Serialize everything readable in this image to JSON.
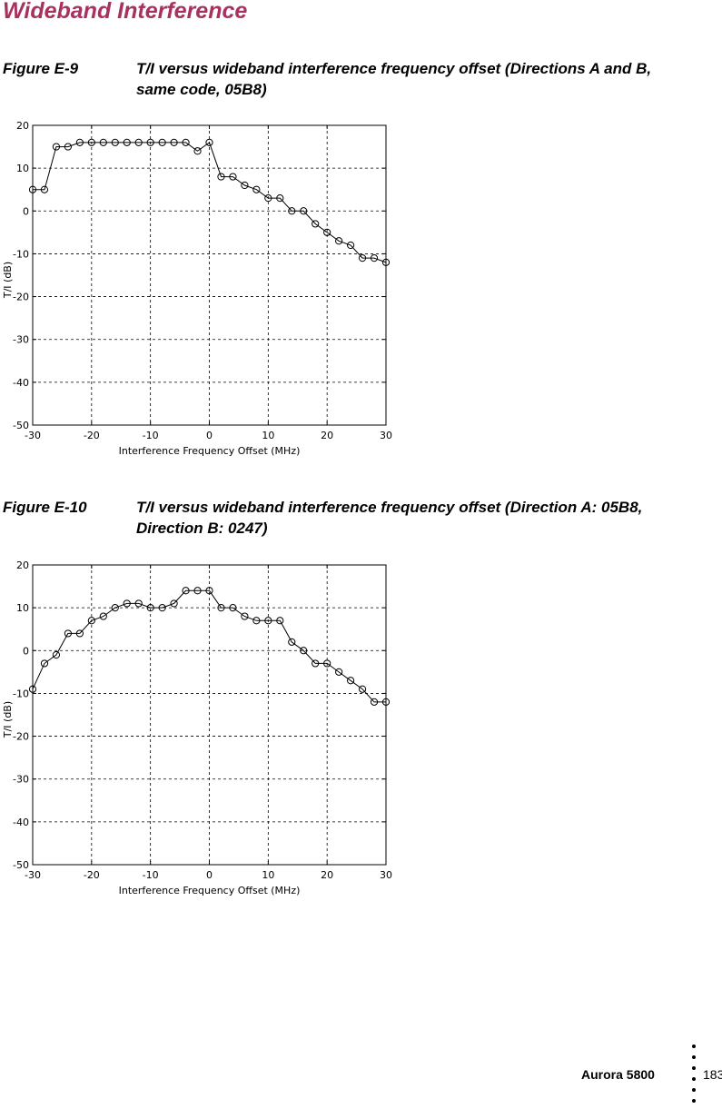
{
  "section_title": "Wideband Interference",
  "figures": [
    {
      "label": "Figure E-9",
      "caption": "T/I versus wideband interference frequency offset (Directions A and B, same code, 05B8)"
    },
    {
      "label": "Figure E-10",
      "caption": "T/I versus wideband interference frequency offset (Direction A: 05B8, Direction B: 0247)"
    }
  ],
  "footer": {
    "product": "Aurora 5800",
    "page": "183"
  },
  "chart_data": [
    {
      "type": "line",
      "marker": "circle",
      "xlabel": "Interference Frequency Offset (MHz)",
      "ylabel": "T/I  (dB)",
      "xlim": [
        -30,
        30
      ],
      "ylim": [
        -50,
        20
      ],
      "xticks": [
        -30,
        -20,
        -10,
        0,
        10,
        20,
        30
      ],
      "yticks": [
        20,
        10,
        0,
        -10,
        -20,
        -30,
        -40,
        -50
      ],
      "grid": true,
      "x": [
        -30,
        -28,
        -26,
        -24,
        -22,
        -20,
        -18,
        -16,
        -14,
        -12,
        -10,
        -8,
        -6,
        -4,
        -2,
        0,
        2,
        4,
        6,
        8,
        10,
        12,
        14,
        16,
        18,
        20,
        22,
        24,
        26,
        28,
        30
      ],
      "values": [
        5,
        5,
        15,
        15,
        16,
        16,
        16,
        16,
        16,
        16,
        16,
        16,
        16,
        16,
        14,
        16,
        8,
        8,
        6,
        5,
        3,
        3,
        0,
        0,
        -3,
        -5,
        -7,
        -8,
        -11,
        -11,
        -12
      ]
    },
    {
      "type": "line",
      "marker": "circle",
      "xlabel": "Interference Frequency Offset (MHz)",
      "ylabel": "T/I  (dB)",
      "xlim": [
        -30,
        30
      ],
      "ylim": [
        -50,
        20
      ],
      "xticks": [
        -30,
        -20,
        -10,
        0,
        10,
        20,
        30
      ],
      "yticks": [
        20,
        10,
        0,
        -10,
        -20,
        -30,
        -40,
        -50
      ],
      "grid": true,
      "x": [
        -30,
        -28,
        -26,
        -24,
        -22,
        -20,
        -18,
        -16,
        -14,
        -12,
        -10,
        -8,
        -6,
        -4,
        -2,
        0,
        2,
        4,
        6,
        8,
        10,
        12,
        14,
        16,
        18,
        20,
        22,
        24,
        26,
        28,
        30
      ],
      "values": [
        -9,
        -3,
        -1,
        4,
        4,
        7,
        8,
        10,
        11,
        11,
        10,
        10,
        11,
        14,
        14,
        14,
        10,
        10,
        8,
        7,
        7,
        7,
        2,
        0,
        -3,
        -3,
        -5,
        -7,
        -9,
        -12,
        -12
      ]
    }
  ]
}
